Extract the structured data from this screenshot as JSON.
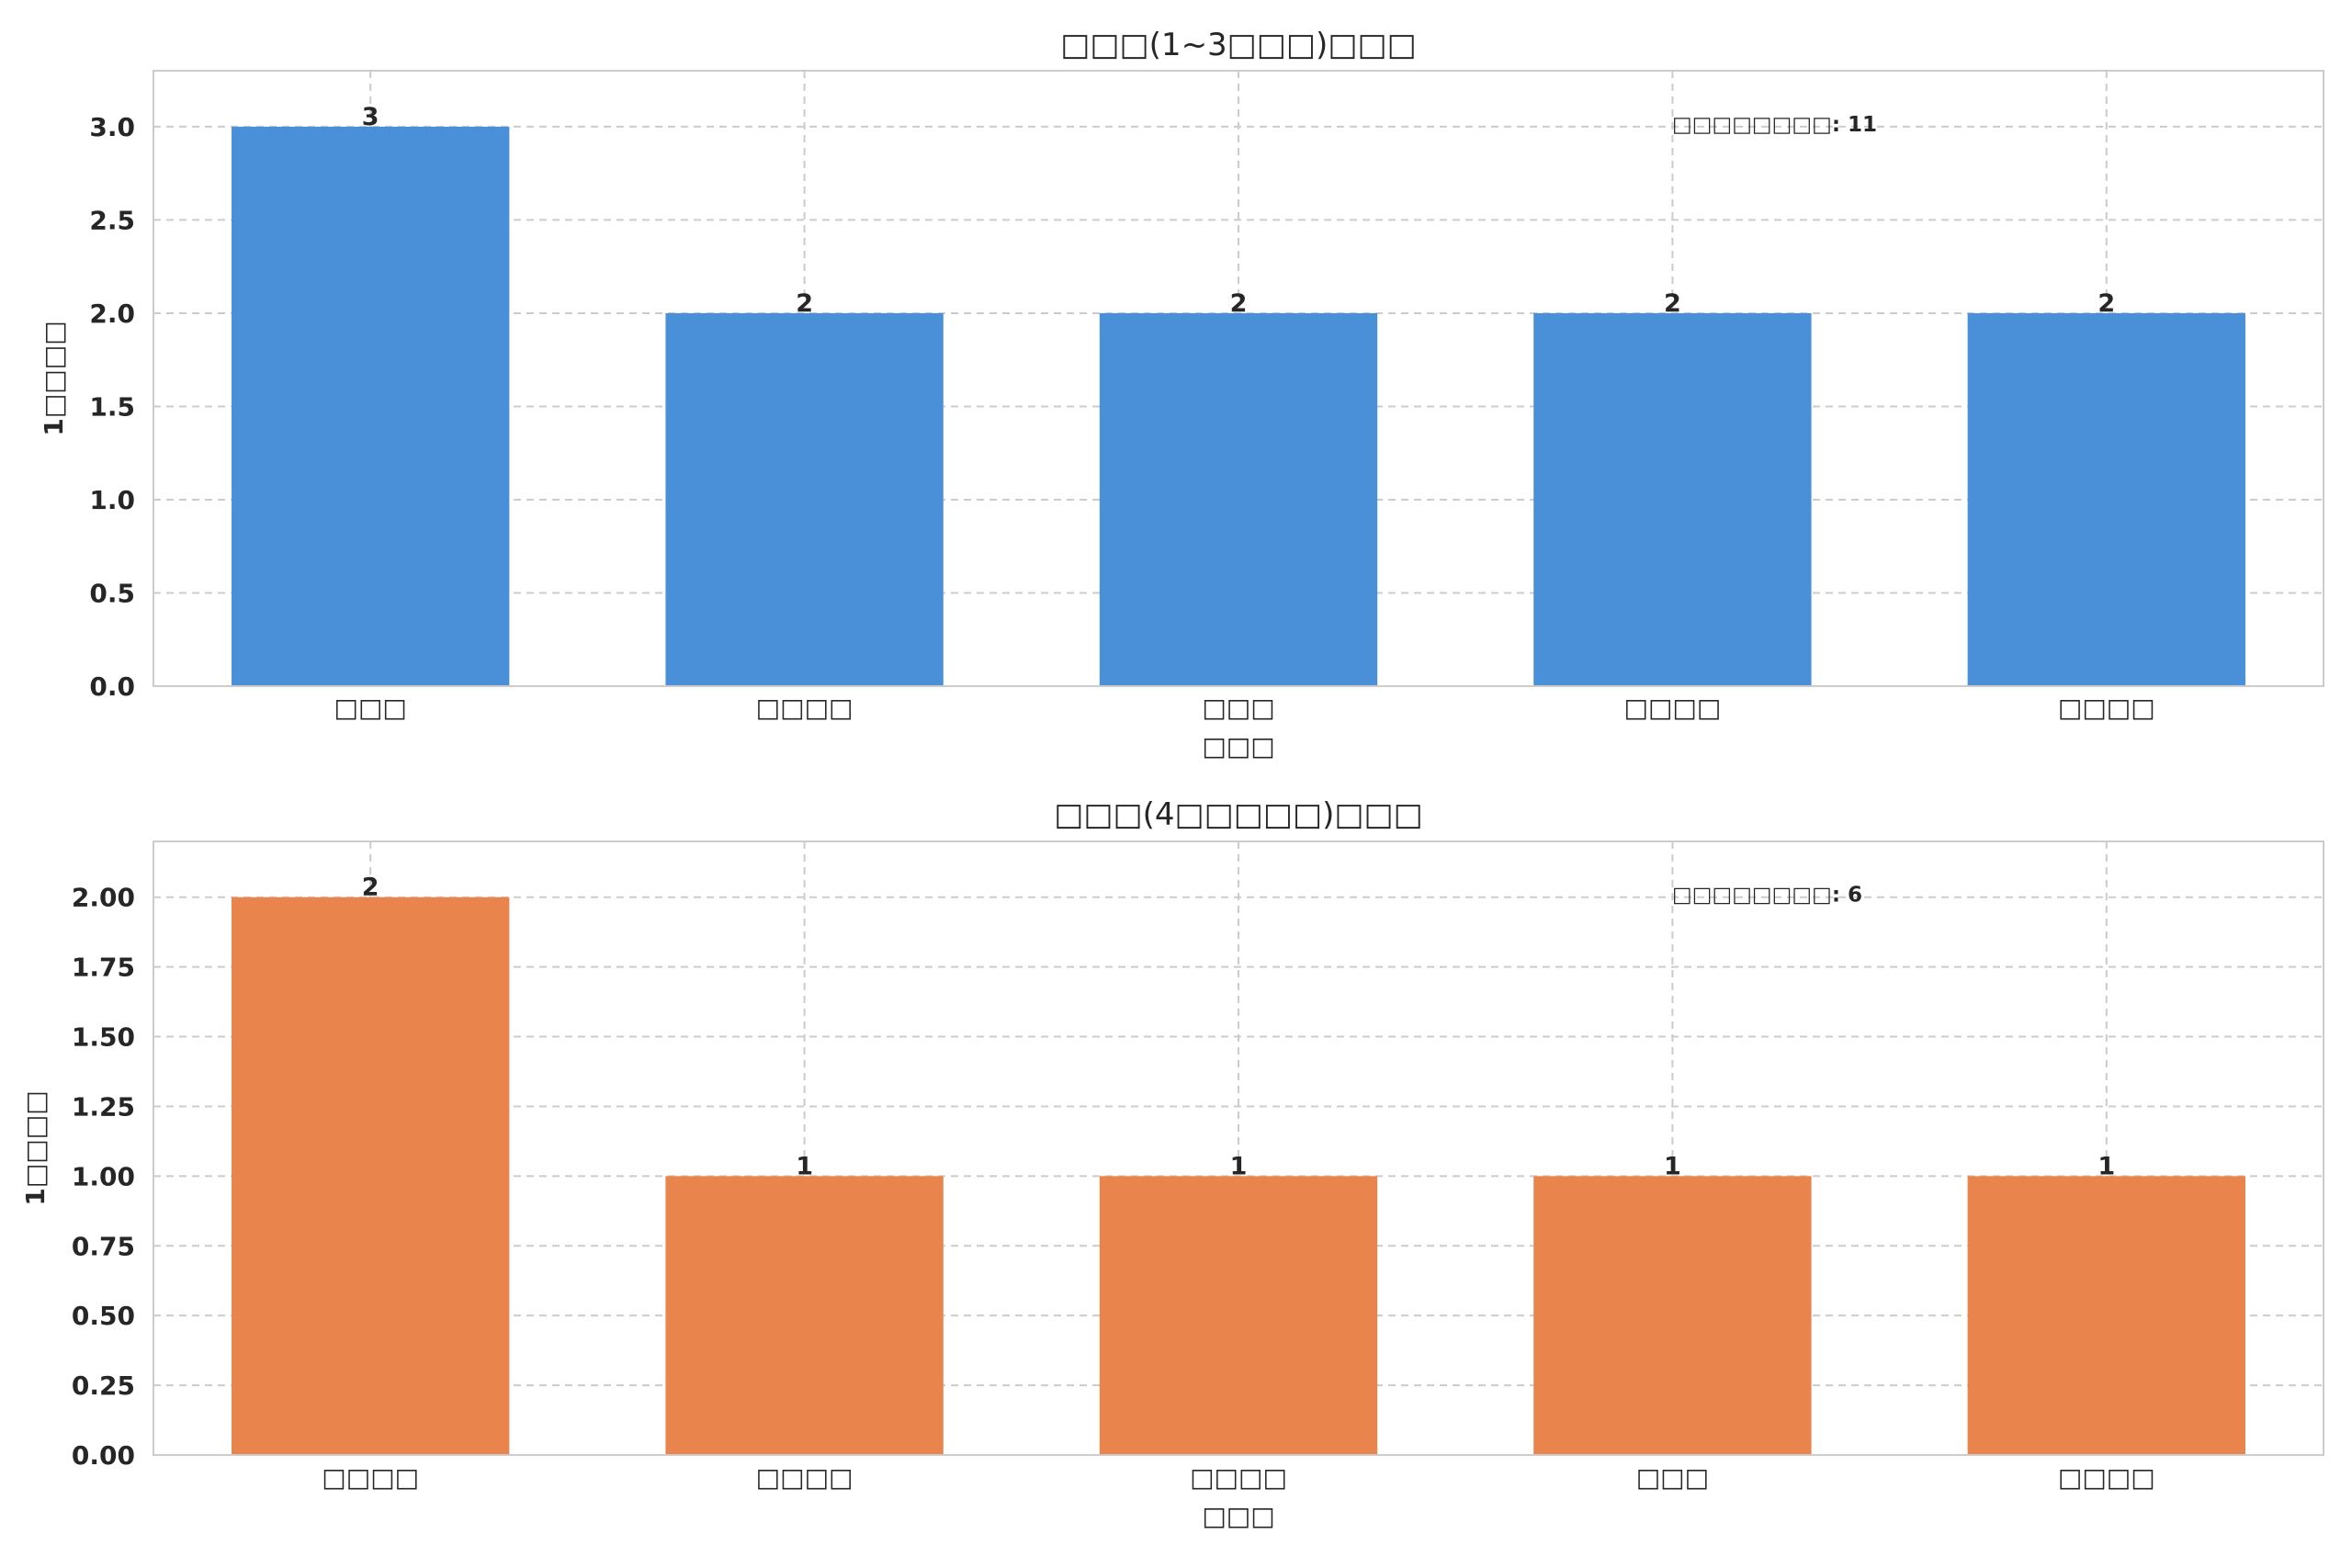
{
  "chart_data": [
    {
      "type": "bar",
      "title": "□□□(1~3□□□)□□□",
      "xlabel": "□□□",
      "ylabel": "1□□□□",
      "categories": [
        "□□□",
        "□□□□",
        "□□□",
        "□□□□",
        "□□□□"
      ],
      "values": [
        3,
        2,
        2,
        2,
        2
      ],
      "value_labels": [
        "3",
        "2",
        "2",
        "2",
        "2"
      ],
      "ylim": [
        0,
        3.3
      ],
      "yticks": [
        0.0,
        0.5,
        1.0,
        1.5,
        2.0,
        2.5,
        3.0
      ],
      "ytick_labels": [
        "0.0",
        "0.5",
        "1.0",
        "1.5",
        "2.0",
        "2.5",
        "3.0"
      ],
      "annotation": "□□□□□□□□: 11",
      "bar_color": "#4a90d9",
      "grid": true
    },
    {
      "type": "bar",
      "title": "□□□(4□□□□□)□□□",
      "xlabel": "□□□",
      "ylabel": "1□□□□",
      "categories": [
        "□□□□",
        "□□□□",
        "□□□□",
        "□□□",
        "□□□□"
      ],
      "values": [
        2,
        1,
        1,
        1,
        1
      ],
      "value_labels": [
        "2",
        "1",
        "1",
        "1",
        "1"
      ],
      "ylim": [
        0,
        2.2
      ],
      "yticks": [
        0.0,
        0.25,
        0.5,
        0.75,
        1.0,
        1.25,
        1.5,
        1.75,
        2.0
      ],
      "ytick_labels": [
        "0.00",
        "0.25",
        "0.50",
        "0.75",
        "1.00",
        "1.25",
        "1.50",
        "1.75",
        "2.00"
      ],
      "annotation": "□□□□□□□□: 6",
      "bar_color": "#e8844c",
      "grid": true
    }
  ]
}
